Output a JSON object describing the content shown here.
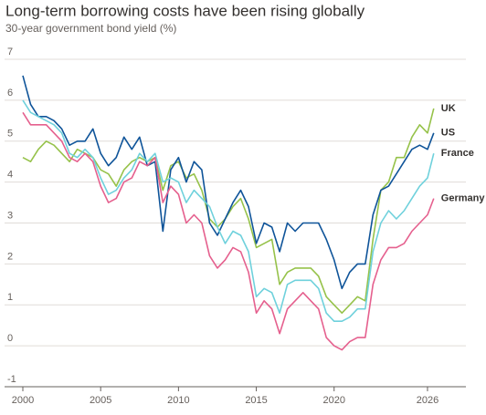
{
  "chart_data": {
    "type": "line",
    "title": "Long-term borrowing costs have been rising globally",
    "subtitle": "30-year government bond yield (%)",
    "x": [
      2000,
      2000.5,
      2001,
      2001.5,
      2002,
      2002.5,
      2003,
      2003.5,
      2004,
      2004.5,
      2005,
      2005.5,
      2006,
      2006.5,
      2007,
      2007.5,
      2008,
      2008.5,
      2009,
      2009.5,
      2010,
      2010.5,
      2011,
      2011.5,
      2012,
      2012.5,
      2013,
      2013.5,
      2014,
      2014.5,
      2015,
      2015.5,
      2016,
      2016.5,
      2017,
      2017.5,
      2018,
      2018.5,
      2019,
      2019.5,
      2020,
      2020.5,
      2021,
      2021.5,
      2022,
      2022.5,
      2023,
      2023.5,
      2024,
      2024.5,
      2025,
      2025.5,
      2026,
      2026.4
    ],
    "series": [
      {
        "name": "UK",
        "color": "#96c24a",
        "values": [
          4.6,
          4.5,
          4.8,
          5.0,
          4.9,
          4.7,
          4.5,
          4.8,
          4.7,
          4.6,
          4.3,
          4.2,
          3.9,
          4.3,
          4.5,
          4.6,
          4.5,
          4.6,
          3.8,
          4.4,
          4.5,
          4.1,
          4.2,
          3.8,
          3.1,
          2.9,
          3.1,
          3.4,
          3.6,
          3.1,
          2.4,
          2.5,
          2.6,
          1.5,
          1.8,
          1.9,
          1.9,
          1.9,
          1.7,
          1.2,
          1.0,
          0.8,
          1.0,
          1.2,
          1.1,
          2.6,
          3.8,
          4.0,
          4.6,
          4.6,
          5.1,
          5.4,
          5.2,
          5.8
        ]
      },
      {
        "name": "US",
        "color": "#0f5499",
        "values": [
          6.6,
          5.9,
          5.6,
          5.6,
          5.5,
          5.3,
          4.9,
          5.0,
          5.0,
          5.3,
          4.7,
          4.4,
          4.6,
          5.1,
          4.8,
          5.1,
          4.4,
          4.5,
          2.8,
          4.3,
          4.6,
          4.0,
          4.5,
          4.3,
          3.0,
          2.7,
          3.1,
          3.5,
          3.8,
          3.4,
          2.5,
          3.0,
          2.9,
          2.3,
          3.0,
          2.8,
          3.0,
          3.0,
          3.0,
          2.6,
          2.1,
          1.4,
          1.8,
          2.0,
          2.0,
          3.2,
          3.8,
          3.9,
          4.2,
          4.5,
          4.8,
          4.9,
          4.8,
          5.2
        ]
      },
      {
        "name": "France",
        "color": "#6fd1dc",
        "values": [
          6.0,
          5.7,
          5.6,
          5.5,
          5.4,
          5.2,
          4.7,
          4.6,
          4.8,
          4.6,
          4.1,
          3.7,
          3.8,
          4.1,
          4.3,
          4.7,
          4.5,
          4.7,
          4.0,
          4.1,
          4.0,
          3.5,
          3.8,
          3.6,
          3.4,
          2.9,
          2.5,
          2.8,
          2.7,
          2.3,
          1.2,
          1.4,
          1.3,
          0.8,
          1.5,
          1.6,
          1.6,
          1.6,
          1.4,
          0.8,
          0.6,
          0.6,
          0.7,
          0.9,
          0.9,
          2.3,
          3.0,
          3.3,
          3.1,
          3.3,
          3.6,
          3.9,
          4.1,
          4.7
        ]
      },
      {
        "name": "Germany",
        "color": "#e5608e",
        "values": [
          5.7,
          5.4,
          5.4,
          5.4,
          5.2,
          5.0,
          4.6,
          4.5,
          4.7,
          4.5,
          3.9,
          3.5,
          3.6,
          4.0,
          4.1,
          4.5,
          4.4,
          4.6,
          3.5,
          3.9,
          3.7,
          3.0,
          3.2,
          3.0,
          2.2,
          1.9,
          2.1,
          2.4,
          2.3,
          1.8,
          0.8,
          1.1,
          0.9,
          0.3,
          0.9,
          1.1,
          1.3,
          1.1,
          0.9,
          0.2,
          0.0,
          -0.1,
          0.1,
          0.2,
          0.2,
          1.5,
          2.1,
          2.4,
          2.4,
          2.5,
          2.8,
          3.0,
          3.2,
          3.6
        ]
      }
    ],
    "xlim": [
      2000,
      2027
    ],
    "ylim": [
      -1,
      7
    ],
    "xticks": [
      2000,
      2005,
      2010,
      2015,
      2020,
      2026
    ],
    "yticks": [
      -1,
      0,
      1,
      2,
      3,
      4,
      5,
      6,
      7
    ],
    "grid": true
  }
}
